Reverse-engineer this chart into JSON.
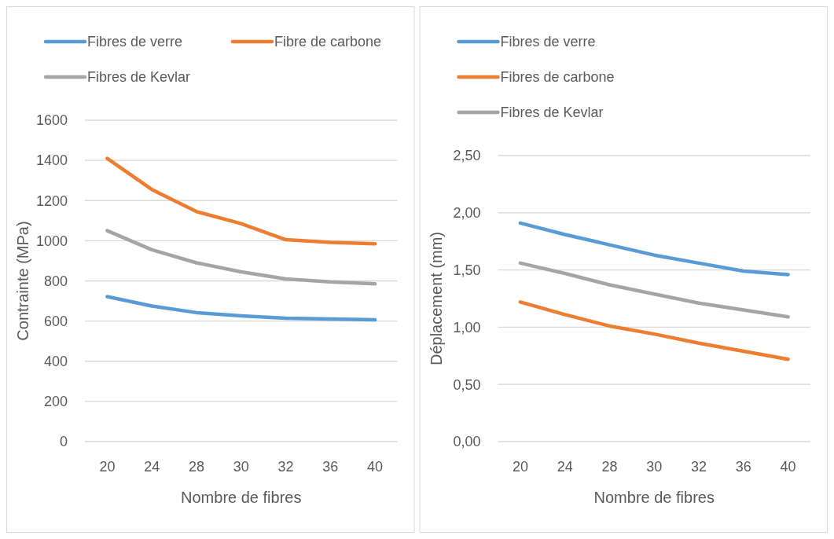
{
  "chart_data": [
    {
      "type": "line",
      "categories": [
        "20",
        "24",
        "28",
        "30",
        "32",
        "36",
        "40"
      ],
      "xlabel": "Nombre de fibres",
      "ylabel": "Contrainte (MPa)",
      "ylim": [
        0,
        1600
      ],
      "yticks": [
        0,
        200,
        400,
        600,
        800,
        1000,
        1200,
        1400,
        1600
      ],
      "grid": "y",
      "legend": "top",
      "series": [
        {
          "name": "Fibres de verre",
          "color": "#5b9bd5",
          "values": [
            722,
            675,
            642,
            626,
            614,
            610,
            606
          ]
        },
        {
          "name": "Fibre de carbone",
          "color": "#ed7d31",
          "values": [
            1410,
            1255,
            1145,
            1085,
            1005,
            992,
            985
          ]
        },
        {
          "name": "Fibres de Kevlar",
          "color": "#a5a5a5",
          "values": [
            1050,
            955,
            890,
            845,
            810,
            795,
            785
          ]
        }
      ]
    },
    {
      "type": "line",
      "categories": [
        "20",
        "24",
        "28",
        "30",
        "32",
        "36",
        "40"
      ],
      "xlabel": "Nombre de fibres",
      "ylabel": "Déplacement (mm)",
      "ylim": [
        0,
        2.5
      ],
      "yticks": [
        {
          "value": 0,
          "label": "0,00"
        },
        {
          "value": 0.5,
          "label": "0,50"
        },
        {
          "value": 1,
          "label": "1,00"
        },
        {
          "value": 1.5,
          "label": "1,50"
        },
        {
          "value": 2,
          "label": "2,00"
        },
        {
          "value": 2.5,
          "label": "2,50"
        }
      ],
      "grid": "y",
      "legend": "top",
      "series": [
        {
          "name": "Fibres de verre",
          "color": "#5b9bd5",
          "values": [
            1.91,
            1.81,
            1.72,
            1.63,
            1.56,
            1.49,
            1.46
          ]
        },
        {
          "name": "Fibres de carbone",
          "color": "#ed7d31",
          "values": [
            1.22,
            1.11,
            1.01,
            0.94,
            0.86,
            0.79,
            0.72
          ]
        },
        {
          "name": "Fibres de Kevlar",
          "color": "#a5a5a5",
          "values": [
            1.56,
            1.47,
            1.37,
            1.29,
            1.21,
            1.15,
            1.09
          ]
        }
      ]
    }
  ]
}
